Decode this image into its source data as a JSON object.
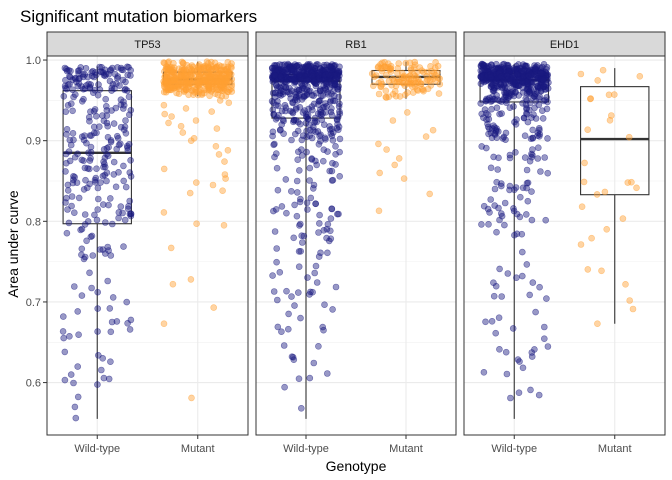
{
  "chart_data": {
    "type": "box+jitter",
    "title": "Significant mutation biomarkers",
    "xlabel": "Genotype",
    "ylabel": "Area under curve",
    "ylim": [
      0.535,
      1.005
    ],
    "yticks": [
      0.6,
      0.7,
      0.8,
      0.9,
      1.0
    ],
    "ytick_labels": [
      "0.6",
      "0.7",
      "0.8",
      "0.9",
      "1.0"
    ],
    "categories": [
      "Wild-type",
      "Mutant"
    ],
    "grid": true,
    "legend": "none",
    "colors": {
      "Wild-type": "#1a1a80",
      "Mutant": "#ffa033"
    },
    "panels": [
      {
        "name": "TP53",
        "boxes": [
          {
            "group": "Wild-type",
            "min": 0.555,
            "q1": 0.797,
            "median": 0.885,
            "q3": 0.962,
            "max": 0.992
          },
          {
            "group": "Mutant",
            "min": 0.955,
            "q1": 0.97,
            "median": 0.976,
            "q3": 0.985,
            "max": 0.998
          }
        ],
        "points": {
          "Wild-type": {
            "n": 300,
            "seed": 11,
            "dist": [
              [
                0.555,
                0
              ],
              [
                0.6,
                0.02
              ],
              [
                0.65,
                0.05
              ],
              [
                0.7,
                0.12
              ],
              [
                0.75,
                0.18
              ],
              [
                0.797,
                0.25
              ],
              [
                0.85,
                0.38
              ],
              [
                0.885,
                0.5
              ],
              [
                0.93,
                0.65
              ],
              [
                0.962,
                0.75
              ],
              [
                0.98,
                0.88
              ],
              [
                0.992,
                1
              ]
            ]
          },
          "Mutant": {
            "n": 380,
            "seed": 23,
            "dist": [
              [
                0.955,
                0
              ],
              [
                0.962,
                0.05
              ],
              [
                0.97,
                0.25
              ],
              [
                0.976,
                0.5
              ],
              [
                0.985,
                0.75
              ],
              [
                0.992,
                0.92
              ],
              [
                0.998,
                1
              ]
            ],
            "outliers": [
              0.581,
              0.673,
              0.693,
              0.722,
              0.728,
              0.767,
              0.795,
              0.797,
              0.811,
              0.835,
              0.838,
              0.845,
              0.848,
              0.853,
              0.858,
              0.865,
              0.874,
              0.883,
              0.888,
              0.893,
              0.9,
              0.903,
              0.91,
              0.915,
              0.918,
              0.922,
              0.925,
              0.93,
              0.933,
              0.936,
              0.94,
              0.944,
              0.947,
              0.95
            ]
          }
        }
      },
      {
        "name": "RB1",
        "boxes": [
          {
            "group": "Wild-type",
            "min": 0.555,
            "q1": 0.928,
            "median": 0.974,
            "q3": 0.982,
            "max": 0.995
          },
          {
            "group": "Mutant",
            "min": 0.952,
            "q1": 0.97,
            "median": 0.979,
            "q3": 0.987,
            "max": 0.998
          }
        ],
        "points": {
          "Wild-type": {
            "n": 650,
            "seed": 37,
            "dist": [
              [
                0.555,
                0
              ],
              [
                0.6,
                0.01
              ],
              [
                0.7,
                0.04
              ],
              [
                0.8,
                0.09
              ],
              [
                0.9,
                0.17
              ],
              [
                0.928,
                0.25
              ],
              [
                0.955,
                0.35
              ],
              [
                0.974,
                0.5
              ],
              [
                0.982,
                0.75
              ],
              [
                0.99,
                0.92
              ],
              [
                0.995,
                1
              ]
            ]
          },
          "Mutant": {
            "n": 120,
            "seed": 41,
            "dist": [
              [
                0.952,
                0
              ],
              [
                0.962,
                0.08
              ],
              [
                0.97,
                0.25
              ],
              [
                0.979,
                0.5
              ],
              [
                0.987,
                0.75
              ],
              [
                0.993,
                0.92
              ],
              [
                0.998,
                1
              ]
            ],
            "outliers": [
              0.813,
              0.834,
              0.853,
              0.86,
              0.87,
              0.878,
              0.889,
              0.896,
              0.905,
              0.913,
              0.925,
              0.935
            ]
          }
        }
      },
      {
        "name": "EHD1",
        "boxes": [
          {
            "group": "Wild-type",
            "min": 0.555,
            "q1": 0.948,
            "median": 0.975,
            "q3": 0.983,
            "max": 0.995
          },
          {
            "group": "Mutant",
            "min": 0.673,
            "q1": 0.833,
            "median": 0.902,
            "q3": 0.967,
            "max": 0.99
          }
        ],
        "points": {
          "Wild-type": {
            "n": 620,
            "seed": 53,
            "dist": [
              [
                0.555,
                0
              ],
              [
                0.6,
                0.01
              ],
              [
                0.7,
                0.04
              ],
              [
                0.8,
                0.08
              ],
              [
                0.9,
                0.15
              ],
              [
                0.948,
                0.25
              ],
              [
                0.965,
                0.37
              ],
              [
                0.975,
                0.5
              ],
              [
                0.983,
                0.75
              ],
              [
                0.99,
                0.92
              ],
              [
                0.995,
                1
              ]
            ]
          },
          "Mutant": {
            "n": 30,
            "seed": 67,
            "dist": [
              [
                0.673,
                0
              ],
              [
                0.75,
                0.1
              ],
              [
                0.833,
                0.25
              ],
              [
                0.87,
                0.38
              ],
              [
                0.902,
                0.5
              ],
              [
                0.94,
                0.65
              ],
              [
                0.967,
                0.75
              ],
              [
                0.98,
                0.88
              ],
              [
                0.99,
                1
              ]
            ]
          }
        }
      }
    ]
  }
}
